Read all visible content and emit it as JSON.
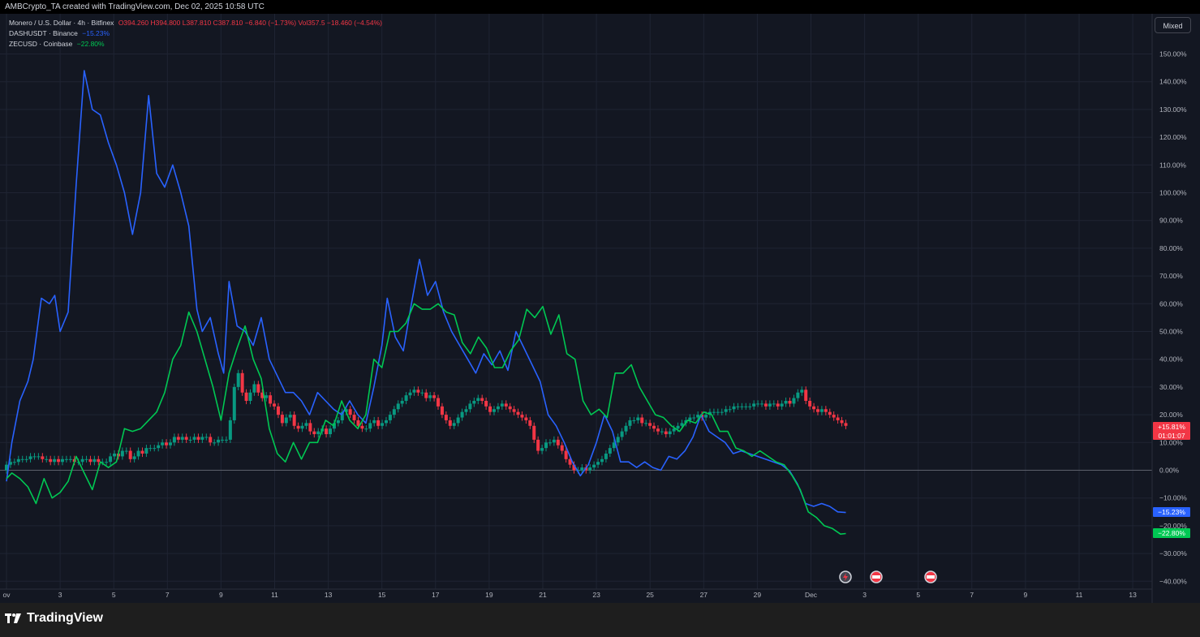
{
  "header": {
    "credit": "AMBCrypto_TA created with TradingView.com, Dec 02, 2025 10:58 UTC"
  },
  "legend": {
    "main": {
      "title": "Monero / U.S. Dollar · 4h · Bitfinex",
      "ohlc": "O394.260 H394.800 L387.810 C387.810 −6.840 (−1.73%) Vol357.5 −18.460 (−4.54%)"
    },
    "dash": {
      "title": "DASHUSDT · Binance",
      "value": "−15.23%"
    },
    "zec": {
      "title": "ZECUSD · Coinbase",
      "value": "−22.80%"
    }
  },
  "toolbar": {
    "mixed_label": "Mixed"
  },
  "footer": {
    "logo_text": "TradingView"
  },
  "colors": {
    "up": "#089981",
    "down": "#f23645",
    "dash": "#2962ff",
    "zec": "#00c853",
    "background": "#131722",
    "grid": "#1f2433"
  },
  "price_badges": {
    "xmr": {
      "value": "+15.81%",
      "countdown": "01:01:07"
    },
    "dash": "−15.23%",
    "zec": "−22.80%"
  },
  "chart_data": {
    "type": "line",
    "title": "Monero / U.S. Dollar · 4h · Bitfinex",
    "y_scale": "percent",
    "ylim": [
      -40,
      155
    ],
    "y_ticks": [
      -40,
      -30,
      -20,
      -10,
      0,
      10,
      20,
      30,
      40,
      50,
      60,
      70,
      80,
      90,
      100,
      110,
      120,
      130,
      140,
      150
    ],
    "y_tick_labels": [
      "−40.00%",
      "−30.00%",
      "−20.00%",
      "−10.00%",
      "0.00%",
      "10.00%",
      "20.00%",
      "30.00%",
      "40.00%",
      "50.00%",
      "60.00%",
      "70.00%",
      "80.00%",
      "90.00%",
      "100.00%",
      "110.00%",
      "120.00%",
      "130.00%",
      "140.00%",
      "150.00%"
    ],
    "x_tick_labels": [
      {
        "day": 1,
        "label": "ov"
      },
      {
        "day": 3,
        "label": "3"
      },
      {
        "day": 5,
        "label": "5"
      },
      {
        "day": 7,
        "label": "7"
      },
      {
        "day": 9,
        "label": "9"
      },
      {
        "day": 11,
        "label": "11"
      },
      {
        "day": 13,
        "label": "13"
      },
      {
        "day": 15,
        "label": "15"
      },
      {
        "day": 17,
        "label": "17"
      },
      {
        "day": 19,
        "label": "19"
      },
      {
        "day": 21,
        "label": "21"
      },
      {
        "day": 23,
        "label": "23"
      },
      {
        "day": 25,
        "label": "25"
      },
      {
        "day": 27,
        "label": "27"
      },
      {
        "day": 29,
        "label": "29"
      },
      {
        "day": 31,
        "label": "Dec"
      },
      {
        "day": 33,
        "label": "3"
      },
      {
        "day": 35,
        "label": "5"
      },
      {
        "day": 37,
        "label": "7"
      },
      {
        "day": 39,
        "label": "9"
      },
      {
        "day": 41,
        "label": "11"
      },
      {
        "day": 43,
        "label": "13"
      }
    ],
    "series": [
      {
        "name": "DASHUSDT · Binance",
        "kind": "line",
        "points": [
          [
            1.0,
            -4
          ],
          [
            1.2,
            10
          ],
          [
            1.5,
            25
          ],
          [
            1.8,
            32
          ],
          [
            2.0,
            40
          ],
          [
            2.3,
            62
          ],
          [
            2.6,
            60
          ],
          [
            2.8,
            63
          ],
          [
            3.0,
            50
          ],
          [
            3.3,
            57
          ],
          [
            3.6,
            103
          ],
          [
            3.9,
            144
          ],
          [
            4.2,
            130
          ],
          [
            4.5,
            128
          ],
          [
            4.8,
            118
          ],
          [
            5.1,
            110
          ],
          [
            5.4,
            100
          ],
          [
            5.7,
            85
          ],
          [
            6.0,
            100
          ],
          [
            6.3,
            135
          ],
          [
            6.6,
            107
          ],
          [
            6.9,
            102
          ],
          [
            7.2,
            110
          ],
          [
            7.5,
            100
          ],
          [
            7.8,
            88
          ],
          [
            8.1,
            58
          ],
          [
            8.3,
            50
          ],
          [
            8.6,
            55
          ],
          [
            8.9,
            42
          ],
          [
            9.1,
            35
          ],
          [
            9.3,
            68
          ],
          [
            9.6,
            52
          ],
          [
            9.9,
            50
          ],
          [
            10.2,
            45
          ],
          [
            10.5,
            55
          ],
          [
            10.8,
            40
          ],
          [
            11.1,
            34
          ],
          [
            11.4,
            28
          ],
          [
            11.7,
            28
          ],
          [
            12.0,
            25
          ],
          [
            12.3,
            20
          ],
          [
            12.6,
            28
          ],
          [
            12.9,
            25
          ],
          [
            13.2,
            22
          ],
          [
            13.5,
            20
          ],
          [
            13.8,
            25
          ],
          [
            14.1,
            20
          ],
          [
            14.4,
            17
          ],
          [
            14.7,
            30
          ],
          [
            15.0,
            45
          ],
          [
            15.2,
            62
          ],
          [
            15.5,
            48
          ],
          [
            15.8,
            43
          ],
          [
            16.1,
            60
          ],
          [
            16.4,
            76
          ],
          [
            16.7,
            63
          ],
          [
            17.0,
            68
          ],
          [
            17.3,
            57
          ],
          [
            17.6,
            50
          ],
          [
            17.9,
            45
          ],
          [
            18.2,
            40
          ],
          [
            18.5,
            35
          ],
          [
            18.8,
            42
          ],
          [
            19.1,
            38
          ],
          [
            19.4,
            43
          ],
          [
            19.7,
            36
          ],
          [
            20.0,
            50
          ],
          [
            20.3,
            44
          ],
          [
            20.6,
            38
          ],
          [
            20.9,
            32
          ],
          [
            21.2,
            20
          ],
          [
            21.5,
            16
          ],
          [
            21.8,
            10
          ],
          [
            22.1,
            3
          ],
          [
            22.4,
            -2
          ],
          [
            22.7,
            2
          ],
          [
            23.0,
            10
          ],
          [
            23.3,
            20
          ],
          [
            23.6,
            14
          ],
          [
            23.9,
            3
          ],
          [
            24.2,
            3
          ],
          [
            24.5,
            1
          ],
          [
            24.8,
            3
          ],
          [
            25.1,
            1
          ],
          [
            25.4,
            0
          ],
          [
            25.7,
            5
          ],
          [
            26.0,
            4
          ],
          [
            26.3,
            7
          ],
          [
            26.6,
            12
          ],
          [
            26.9,
            20
          ],
          [
            27.2,
            14
          ],
          [
            27.5,
            12
          ],
          [
            27.8,
            10
          ],
          [
            28.1,
            6
          ],
          [
            28.4,
            7
          ],
          [
            28.7,
            6
          ],
          [
            29.0,
            5
          ],
          [
            29.3,
            4
          ],
          [
            29.6,
            3
          ],
          [
            29.9,
            2
          ],
          [
            30.2,
            -0.2
          ],
          [
            30.5,
            -5
          ],
          [
            30.8,
            -12
          ],
          [
            31.1,
            -13
          ],
          [
            31.4,
            -12
          ],
          [
            31.7,
            -13
          ],
          [
            32.0,
            -15
          ],
          [
            32.3,
            -15.23
          ]
        ]
      },
      {
        "name": "ZECUSD · Coinbase",
        "kind": "line",
        "points": [
          [
            1.0,
            -3
          ],
          [
            1.2,
            -1
          ],
          [
            1.5,
            -3
          ],
          [
            1.8,
            -6
          ],
          [
            2.1,
            -12
          ],
          [
            2.4,
            -3
          ],
          [
            2.7,
            -10
          ],
          [
            3.0,
            -8
          ],
          [
            3.3,
            -4
          ],
          [
            3.6,
            5
          ],
          [
            3.9,
            -1
          ],
          [
            4.2,
            -7
          ],
          [
            4.5,
            3
          ],
          [
            4.8,
            1
          ],
          [
            5.1,
            3
          ],
          [
            5.4,
            15
          ],
          [
            5.7,
            14
          ],
          [
            6.0,
            15
          ],
          [
            6.3,
            18
          ],
          [
            6.6,
            21
          ],
          [
            6.9,
            28
          ],
          [
            7.2,
            40
          ],
          [
            7.5,
            45
          ],
          [
            7.8,
            57
          ],
          [
            8.1,
            50
          ],
          [
            8.4,
            40
          ],
          [
            8.7,
            30
          ],
          [
            9.0,
            18
          ],
          [
            9.3,
            35
          ],
          [
            9.6,
            44
          ],
          [
            9.9,
            52
          ],
          [
            10.2,
            40
          ],
          [
            10.5,
            33
          ],
          [
            10.8,
            15
          ],
          [
            11.1,
            6
          ],
          [
            11.4,
            3
          ],
          [
            11.7,
            10
          ],
          [
            12.0,
            4
          ],
          [
            12.3,
            10
          ],
          [
            12.6,
            10
          ],
          [
            12.9,
            18
          ],
          [
            13.2,
            16
          ],
          [
            13.5,
            25
          ],
          [
            13.8,
            18
          ],
          [
            14.1,
            15
          ],
          [
            14.4,
            20
          ],
          [
            14.7,
            40
          ],
          [
            15.0,
            37
          ],
          [
            15.3,
            50
          ],
          [
            15.6,
            50
          ],
          [
            15.9,
            53
          ],
          [
            16.2,
            60
          ],
          [
            16.5,
            58
          ],
          [
            16.8,
            58
          ],
          [
            17.1,
            60
          ],
          [
            17.4,
            57
          ],
          [
            17.7,
            56
          ],
          [
            18.0,
            46
          ],
          [
            18.3,
            42
          ],
          [
            18.6,
            48
          ],
          [
            18.9,
            44
          ],
          [
            19.2,
            37
          ],
          [
            19.5,
            37
          ],
          [
            19.8,
            43
          ],
          [
            20.1,
            47
          ],
          [
            20.4,
            58
          ],
          [
            20.7,
            55
          ],
          [
            21.0,
            59
          ],
          [
            21.3,
            49
          ],
          [
            21.6,
            56
          ],
          [
            21.9,
            42
          ],
          [
            22.2,
            40
          ],
          [
            22.5,
            25
          ],
          [
            22.8,
            20
          ],
          [
            23.1,
            22
          ],
          [
            23.4,
            19
          ],
          [
            23.7,
            35
          ],
          [
            24.0,
            35
          ],
          [
            24.3,
            38
          ],
          [
            24.6,
            30
          ],
          [
            24.9,
            25
          ],
          [
            25.2,
            20
          ],
          [
            25.5,
            19
          ],
          [
            25.8,
            16
          ],
          [
            26.1,
            14
          ],
          [
            26.4,
            18
          ],
          [
            26.7,
            17
          ],
          [
            27.0,
            21
          ],
          [
            27.3,
            20
          ],
          [
            27.6,
            14
          ],
          [
            27.9,
            14
          ],
          [
            28.2,
            8
          ],
          [
            28.5,
            7
          ],
          [
            28.8,
            5
          ],
          [
            29.1,
            7
          ],
          [
            29.4,
            5
          ],
          [
            29.7,
            3
          ],
          [
            30.0,
            2
          ],
          [
            30.3,
            -2
          ],
          [
            30.6,
            -7
          ],
          [
            30.9,
            -15
          ],
          [
            31.2,
            -17
          ],
          [
            31.5,
            -20
          ],
          [
            31.8,
            -21
          ],
          [
            32.1,
            -23
          ],
          [
            32.3,
            -22.8
          ]
        ]
      },
      {
        "name": "Monero / U.S. Dollar",
        "kind": "candlestick",
        "closes": [
          2,
          3,
          3,
          4,
          4,
          4,
          5,
          5,
          5,
          4,
          4,
          3,
          4,
          3,
          4,
          4,
          4,
          3,
          3,
          4,
          4,
          3,
          4,
          3,
          3,
          3,
          5,
          6,
          5,
          7,
          7,
          4,
          5,
          7,
          6,
          8,
          8,
          8,
          9,
          10,
          9,
          10,
          12,
          11,
          12,
          11,
          11,
          12,
          11,
          12,
          12,
          10,
          10,
          11,
          11,
          11,
          18,
          30,
          35,
          28,
          25,
          28,
          31,
          28,
          26,
          27,
          24,
          23,
          20,
          17,
          19,
          20,
          16,
          15,
          16,
          17,
          14,
          13,
          14,
          15,
          13,
          15,
          17,
          18,
          21,
          22,
          20,
          18,
          16,
          15,
          15,
          17,
          18,
          16,
          17,
          18,
          20,
          22,
          24,
          25,
          27,
          28,
          29,
          28,
          28,
          26,
          27,
          26,
          23,
          20,
          18,
          16,
          17,
          19,
          21,
          22,
          24,
          25,
          26,
          25,
          23,
          21,
          22,
          23,
          24,
          23,
          22,
          21,
          20,
          19,
          18,
          16,
          11,
          7,
          8,
          10,
          10,
          11,
          9,
          7,
          4,
          2,
          0,
          0,
          1,
          0,
          1,
          2,
          3,
          4,
          6,
          8,
          10,
          12,
          14,
          16,
          18,
          18,
          19,
          17,
          17,
          16,
          15,
          14,
          14,
          13,
          14,
          15,
          16,
          17,
          18,
          19,
          19,
          20,
          19,
          20,
          21,
          21,
          21,
          21,
          22,
          22,
          23,
          23,
          23,
          23,
          23,
          24,
          24,
          24,
          23,
          24,
          24,
          23,
          24,
          25,
          24,
          26,
          28,
          29,
          25,
          23,
          22,
          21,
          22,
          21,
          20,
          19,
          18,
          17,
          16
        ]
      }
    ]
  }
}
